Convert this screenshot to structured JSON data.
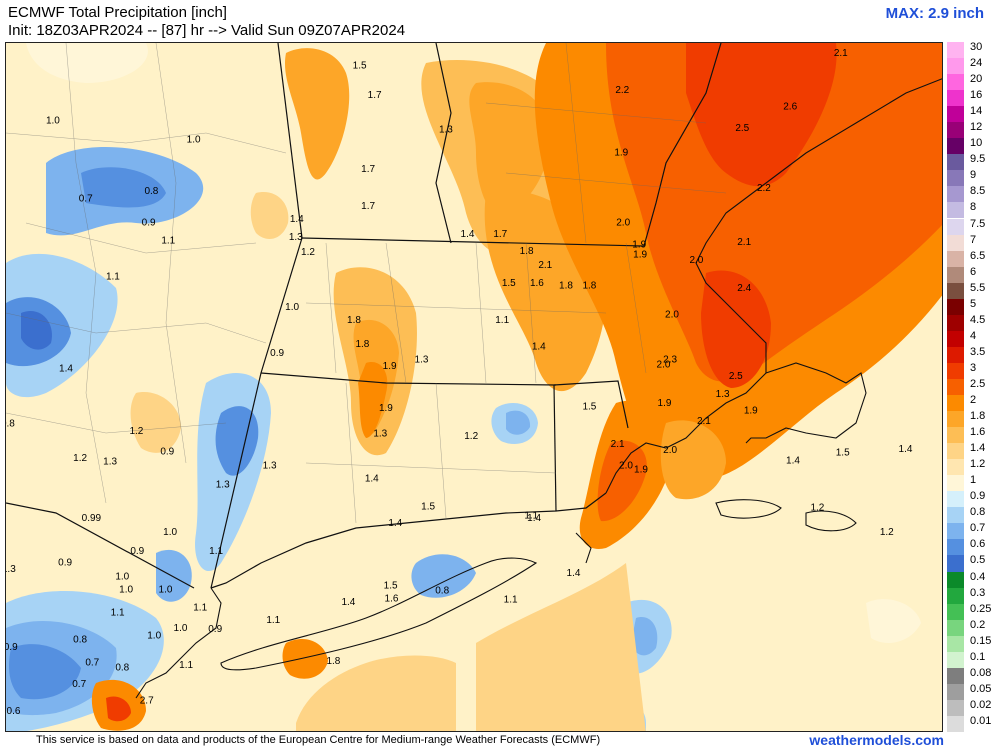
{
  "header": {
    "title": "ECMWF Total Precipitation [inch]",
    "init": "Init: 18Z03APR2024 -- [87] hr --> Valid Sun 09Z07APR2024",
    "max": "MAX: 2.9 inch"
  },
  "footer": {
    "credit": "This service is based on data and products of the European Centre for Medium-range Weather Forecasts (ECMWF)",
    "brand": "weathermodels.com"
  },
  "legend": [
    {
      "label": "30",
      "color": "#ffb3f0"
    },
    {
      "label": "24",
      "color": "#ff99ec"
    },
    {
      "label": "20",
      "color": "#ff66e0"
    },
    {
      "label": "16",
      "color": "#ee33cc"
    },
    {
      "label": "14",
      "color": "#c00099"
    },
    {
      "label": "12",
      "color": "#990077"
    },
    {
      "label": "10",
      "color": "#660066"
    },
    {
      "label": "9.5",
      "color": "#6a5a9e"
    },
    {
      "label": "9",
      "color": "#8878b8"
    },
    {
      "label": "8.5",
      "color": "#a698d0"
    },
    {
      "label": "8",
      "color": "#c4bbe2"
    },
    {
      "label": "7.5",
      "color": "#ddd6ee"
    },
    {
      "label": "7",
      "color": "#f2dcd6"
    },
    {
      "label": "6.5",
      "color": "#d9b3a6"
    },
    {
      "label": "6",
      "color": "#b08a7a"
    },
    {
      "label": "5.5",
      "color": "#7a4f3f"
    },
    {
      "label": "5",
      "color": "#7a0000"
    },
    {
      "label": "4.5",
      "color": "#9e0000"
    },
    {
      "label": "4",
      "color": "#c20000"
    },
    {
      "label": "3.5",
      "color": "#dd1a00"
    },
    {
      "label": "3",
      "color": "#f03c00"
    },
    {
      "label": "2.5",
      "color": "#f76000"
    },
    {
      "label": "2",
      "color": "#fc8a00"
    },
    {
      "label": "1.8",
      "color": "#fda628"
    },
    {
      "label": "1.6",
      "color": "#fdbe55"
    },
    {
      "label": "1.4",
      "color": "#fed486"
    },
    {
      "label": "1.2",
      "color": "#ffe6b0"
    },
    {
      "label": "1",
      "color": "#fff6d8"
    },
    {
      "label": "0.9",
      "color": "#d5f0fb"
    },
    {
      "label": "0.8",
      "color": "#a7d3f5"
    },
    {
      "label": "0.7",
      "color": "#7db3ee"
    },
    {
      "label": "0.6",
      "color": "#5590e0"
    },
    {
      "label": "0.5",
      "color": "#3b6fce"
    },
    {
      "label": "0.4",
      "color": "#0b8a2a"
    },
    {
      "label": "0.3",
      "color": "#22a83e"
    },
    {
      "label": "0.25",
      "color": "#44c055"
    },
    {
      "label": "0.2",
      "color": "#78d57e"
    },
    {
      "label": "0.15",
      "color": "#a8e6a5"
    },
    {
      "label": "0.1",
      "color": "#d2f3cf"
    },
    {
      "label": "0.08",
      "color": "#7e7e7e"
    },
    {
      "label": "0.05",
      "color": "#9e9e9e"
    },
    {
      "label": "0.02",
      "color": "#bdbdbd"
    },
    {
      "label": "0.01",
      "color": "#dcdcdc"
    }
  ],
  "values": [
    {
      "label": "1.0",
      "lng": -76.0,
      "lat": 44.87
    },
    {
      "label": "1.0",
      "lng": -74.5,
      "lat": 44.72
    },
    {
      "label": "0.7",
      "lng": -75.65,
      "lat": 44.26
    },
    {
      "label": "0.8",
      "lng": -74.95,
      "lat": 44.32
    },
    {
      "label": "0.9",
      "lng": -74.98,
      "lat": 44.07
    },
    {
      "label": "0.8",
      "lng": -76.74,
      "lat": 43.9
    },
    {
      "label": "1.1",
      "lng": -74.77,
      "lat": 43.93
    },
    {
      "label": "1.1",
      "lng": -75.36,
      "lat": 43.65
    },
    {
      "label": "1.4",
      "lng": -75.86,
      "lat": 42.93
    },
    {
      "label": "0.8",
      "lng": -76.48,
      "lat": 42.5
    },
    {
      "label": "1.2",
      "lng": -75.11,
      "lat": 42.44
    },
    {
      "label": "1.2",
      "lng": -75.71,
      "lat": 42.23
    },
    {
      "label": "1.3",
      "lng": -75.39,
      "lat": 42.2
    },
    {
      "label": "0.9",
      "lng": -74.78,
      "lat": 42.28
    },
    {
      "label": "1.3",
      "lng": -74.19,
      "lat": 42.02
    },
    {
      "label": "1.3",
      "lng": -73.69,
      "lat": 42.17
    },
    {
      "label": "1.7",
      "lng": -72.57,
      "lat": 45.07
    },
    {
      "label": "1.3",
      "lng": -71.81,
      "lat": 44.8
    },
    {
      "label": "1.7",
      "lng": -72.64,
      "lat": 44.49
    },
    {
      "label": "1.7",
      "lng": -72.64,
      "lat": 44.2
    },
    {
      "label": "1.4",
      "lng": -73.4,
      "lat": 44.1
    },
    {
      "label": "1.3",
      "lng": -73.41,
      "lat": 43.96
    },
    {
      "label": "1.2",
      "lng": -73.28,
      "lat": 43.84
    },
    {
      "label": "1.0",
      "lng": -73.45,
      "lat": 43.41
    },
    {
      "label": "0.9",
      "lng": -73.61,
      "lat": 43.05
    },
    {
      "label": "1.8",
      "lng": -72.79,
      "lat": 43.31
    },
    {
      "label": "1.8",
      "lng": -72.7,
      "lat": 43.12
    },
    {
      "label": "1.9",
      "lng": -72.41,
      "lat": 42.95
    },
    {
      "label": "1.3",
      "lng": -72.07,
      "lat": 43.0
    },
    {
      "label": "1.9",
      "lng": -72.45,
      "lat": 42.62
    },
    {
      "label": "1.3",
      "lng": -72.51,
      "lat": 42.42
    },
    {
      "label": "1.4",
      "lng": -72.6,
      "lat": 42.07
    },
    {
      "label": "1.2",
      "lng": -71.54,
      "lat": 42.4
    },
    {
      "label": "1.5",
      "lng": -72.0,
      "lat": 41.85
    },
    {
      "label": "1.4",
      "lng": -71.58,
      "lat": 43.98
    },
    {
      "label": "1.7",
      "lng": -71.23,
      "lat": 43.98
    },
    {
      "label": "1.5",
      "lng": -71.14,
      "lat": 43.6
    },
    {
      "label": "1.6",
      "lng": -70.84,
      "lat": 43.6
    },
    {
      "label": "1.1",
      "lng": -71.21,
      "lat": 43.31
    },
    {
      "label": "1.4",
      "lng": -70.82,
      "lat": 43.1
    },
    {
      "label": "1.8",
      "lng": -70.95,
      "lat": 43.85
    },
    {
      "label": "2.1",
      "lng": -70.75,
      "lat": 43.74
    },
    {
      "label": "1.8",
      "lng": -70.53,
      "lat": 43.58
    },
    {
      "label": "1.8",
      "lng": -70.28,
      "lat": 43.58
    },
    {
      "label": "1.9",
      "lng": -69.75,
      "lat": 43.9
    },
    {
      "label": "1.9",
      "lng": -69.74,
      "lat": 43.82
    },
    {
      "label": "2.0",
      "lng": -69.92,
      "lat": 44.07
    },
    {
      "label": "1.9",
      "lng": -69.94,
      "lat": 44.62
    },
    {
      "label": "2.2",
      "lng": -69.93,
      "lat": 45.11
    },
    {
      "label": "2.0",
      "lng": -69.14,
      "lat": 43.78
    },
    {
      "label": "2.0",
      "lng": -69.4,
      "lat": 43.35
    },
    {
      "label": "2.0",
      "lng": -69.49,
      "lat": 42.96
    },
    {
      "label": "2.3",
      "lng": -69.42,
      "lat": 43.0
    },
    {
      "label": "2.1",
      "lng": -68.63,
      "lat": 43.92
    },
    {
      "label": "2.4",
      "lng": -68.63,
      "lat": 43.56
    },
    {
      "label": "2.5",
      "lng": -68.72,
      "lat": 42.87
    },
    {
      "label": "2.2",
      "lng": -68.42,
      "lat": 44.34
    },
    {
      "label": "2.5",
      "lng": -68.65,
      "lat": 44.81
    },
    {
      "label": "2.6",
      "lng": -68.14,
      "lat": 44.98
    },
    {
      "label": "2.1",
      "lng": -67.6,
      "lat": 45.4
    },
    {
      "label": "2.0",
      "lng": -69.42,
      "lat": 42.29
    },
    {
      "label": "1.9",
      "lng": -68.56,
      "lat": 42.6
    },
    {
      "label": "2.1",
      "lng": -69.06,
      "lat": 42.52
    },
    {
      "label": "1.9",
      "lng": -69.48,
      "lat": 42.66
    },
    {
      "label": "1.5",
      "lng": -70.28,
      "lat": 42.63
    },
    {
      "label": "2.1",
      "lng": -69.98,
      "lat": 42.34
    },
    {
      "label": "2.0",
      "lng": -69.89,
      "lat": 42.17
    },
    {
      "label": "1.9",
      "lng": -69.73,
      "lat": 42.14
    },
    {
      "label": "1.3",
      "lng": -68.86,
      "lat": 42.73
    },
    {
      "label": "1.4",
      "lng": -68.11,
      "lat": 42.21
    },
    {
      "label": "1.5",
      "lng": -67.58,
      "lat": 42.27
    },
    {
      "label": "1.4",
      "lng": -66.91,
      "lat": 42.3
    },
    {
      "label": "1.2",
      "lng": -67.85,
      "lat": 41.84
    },
    {
      "label": "1.2",
      "lng": -67.11,
      "lat": 41.65
    },
    {
      "label": "1.4",
      "lng": -70.87,
      "lat": 41.76
    },
    {
      "label": "1.4",
      "lng": -72.35,
      "lat": 41.72
    },
    {
      "label": "1.1",
      "lng": -70.9,
      "lat": 41.78
    },
    {
      "label": "1.4",
      "lng": -70.45,
      "lat": 41.33
    },
    {
      "label": "1.1",
      "lng": -71.12,
      "lat": 41.12
    },
    {
      "label": "0.8",
      "lng": -71.85,
      "lat": 41.19
    },
    {
      "label": "1.5",
      "lng": -72.4,
      "lat": 41.23
    },
    {
      "label": "1.6",
      "lng": -72.39,
      "lat": 41.13
    },
    {
      "label": "1.4",
      "lng": -72.85,
      "lat": 41.1
    },
    {
      "label": "1.1",
      "lng": -73.65,
      "lat": 40.96
    },
    {
      "label": "1.8",
      "lng": -73.01,
      "lat": 40.64
    },
    {
      "label": "0.9",
      "lng": -74.27,
      "lat": 40.89
    },
    {
      "label": "1.0",
      "lng": -74.75,
      "lat": 41.65
    },
    {
      "label": "1.1",
      "lng": -74.26,
      "lat": 41.5
    },
    {
      "label": "0.99",
      "lng": -75.59,
      "lat": 41.76
    },
    {
      "label": "0.9",
      "lng": -75.1,
      "lat": 41.5
    },
    {
      "label": "0.9",
      "lng": -75.87,
      "lat": 41.41
    },
    {
      "label": "1.0",
      "lng": -75.26,
      "lat": 41.3
    },
    {
      "label": "1.0",
      "lng": -75.22,
      "lat": 41.2
    },
    {
      "label": "1.0",
      "lng": -74.8,
      "lat": 41.2
    },
    {
      "label": "1.1",
      "lng": -75.31,
      "lat": 41.02
    },
    {
      "label": "1.1",
      "lng": -74.43,
      "lat": 41.06
    },
    {
      "label": "1.0",
      "lng": -74.92,
      "lat": 40.84
    },
    {
      "label": "1.0",
      "lng": -74.64,
      "lat": 40.9
    },
    {
      "label": "0.8",
      "lng": -75.71,
      "lat": 40.81
    },
    {
      "label": "0.7",
      "lng": -75.58,
      "lat": 40.63
    },
    {
      "label": "0.8",
      "lng": -75.26,
      "lat": 40.59
    },
    {
      "label": "0.7",
      "lng": -75.72,
      "lat": 40.46
    },
    {
      "label": "2.7",
      "lng": -75.0,
      "lat": 40.33
    },
    {
      "label": "1.1",
      "lng": -74.58,
      "lat": 40.61
    },
    {
      "label": "0.9",
      "lng": -76.45,
      "lat": 40.75
    },
    {
      "label": "0.6",
      "lng": -76.42,
      "lat": 40.25
    },
    {
      "label": "1.3",
      "lng": -76.47,
      "lat": 41.36
    },
    {
      "label": "1.5",
      "lng": -72.73,
      "lat": 45.3
    }
  ]
}
